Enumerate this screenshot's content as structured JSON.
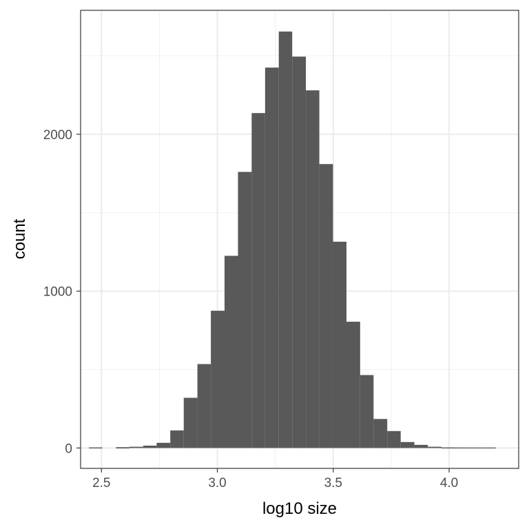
{
  "chart_data": {
    "type": "bar",
    "subtype": "histogram",
    "title": "",
    "xlabel": "log10 size",
    "ylabel": "count",
    "xlim": [
      2.41,
      4.3
    ],
    "ylim": [
      -130,
      2790
    ],
    "x_ticks": [
      2.5,
      3.0,
      3.5,
      4.0
    ],
    "x_tick_labels": [
      "2.5",
      "3.0",
      "3.5",
      "4.0"
    ],
    "y_ticks": [
      0,
      1000,
      2000
    ],
    "y_tick_labels": [
      "0",
      "1000",
      "2000"
    ],
    "y_minor_gridlines": [
      500,
      1500,
      2500
    ],
    "x_minor_gridlines": [
      2.75,
      3.25,
      3.75
    ],
    "grid": true,
    "theme": "black-and-white",
    "bar_color": "#595959",
    "bins": [
      {
        "x0": 2.446,
        "x1": 2.504,
        "count": 3
      },
      {
        "x0": 2.504,
        "x1": 2.563,
        "count": 0
      },
      {
        "x0": 2.563,
        "x1": 2.621,
        "count": 5
      },
      {
        "x0": 2.621,
        "x1": 2.68,
        "count": 8
      },
      {
        "x0": 2.68,
        "x1": 2.738,
        "count": 15
      },
      {
        "x0": 2.738,
        "x1": 2.797,
        "count": 33
      },
      {
        "x0": 2.797,
        "x1": 2.855,
        "count": 112
      },
      {
        "x0": 2.855,
        "x1": 2.914,
        "count": 320
      },
      {
        "x0": 2.914,
        "x1": 2.972,
        "count": 535
      },
      {
        "x0": 2.972,
        "x1": 3.031,
        "count": 875
      },
      {
        "x0": 3.031,
        "x1": 3.089,
        "count": 1225
      },
      {
        "x0": 3.089,
        "x1": 3.148,
        "count": 1760
      },
      {
        "x0": 3.148,
        "x1": 3.206,
        "count": 2135
      },
      {
        "x0": 3.206,
        "x1": 3.265,
        "count": 2425
      },
      {
        "x0": 3.265,
        "x1": 3.323,
        "count": 2655
      },
      {
        "x0": 3.323,
        "x1": 3.382,
        "count": 2495
      },
      {
        "x0": 3.382,
        "x1": 3.44,
        "count": 2280
      },
      {
        "x0": 3.44,
        "x1": 3.499,
        "count": 1810
      },
      {
        "x0": 3.499,
        "x1": 3.557,
        "count": 1315
      },
      {
        "x0": 3.557,
        "x1": 3.616,
        "count": 805
      },
      {
        "x0": 3.616,
        "x1": 3.674,
        "count": 465
      },
      {
        "x0": 3.674,
        "x1": 3.733,
        "count": 185
      },
      {
        "x0": 3.733,
        "x1": 3.791,
        "count": 108
      },
      {
        "x0": 3.791,
        "x1": 3.85,
        "count": 38
      },
      {
        "x0": 3.85,
        "x1": 3.908,
        "count": 20
      },
      {
        "x0": 3.908,
        "x1": 3.967,
        "count": 8
      },
      {
        "x0": 3.967,
        "x1": 4.025,
        "count": 3
      },
      {
        "x0": 4.025,
        "x1": 4.084,
        "count": 2
      },
      {
        "x0": 4.084,
        "x1": 4.142,
        "count": 1
      },
      {
        "x0": 4.142,
        "x1": 4.201,
        "count": 1
      }
    ]
  }
}
